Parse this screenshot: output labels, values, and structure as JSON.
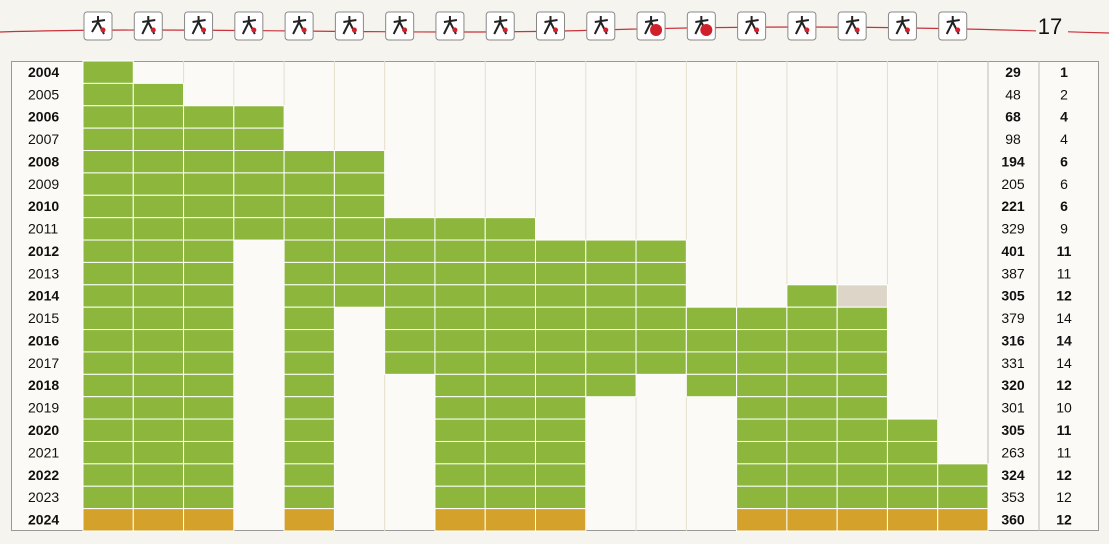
{
  "header": {
    "count": "17",
    "icon_count": 18
  },
  "colors": {
    "held": "#8cb63c",
    "current": "#d4a22a",
    "cancelled": "#ddd6c8",
    "count_text": "#1a9a4a",
    "current_text": "#c0121e"
  },
  "rows": [
    {
      "year": "2004",
      "total": "29",
      "count": "1",
      "held": [
        0
      ]
    },
    {
      "year": "2005",
      "total": "48",
      "count": "2",
      "held": [
        0,
        1
      ]
    },
    {
      "year": "2006",
      "total": "68",
      "count": "4",
      "held": [
        0,
        1,
        2,
        3
      ]
    },
    {
      "year": "2007",
      "total": "98",
      "count": "4",
      "held": [
        0,
        1,
        2,
        3
      ]
    },
    {
      "year": "2008",
      "total": "194",
      "count": "6",
      "held": [
        0,
        1,
        2,
        3,
        4,
        5
      ]
    },
    {
      "year": "2009",
      "total": "205",
      "count": "6",
      "held": [
        0,
        1,
        2,
        3,
        4,
        5
      ]
    },
    {
      "year": "2010",
      "total": "221",
      "count": "6",
      "held": [
        0,
        1,
        2,
        3,
        4,
        5
      ]
    },
    {
      "year": "2011",
      "total": "329",
      "count": "9",
      "held": [
        0,
        1,
        2,
        3,
        4,
        5,
        6,
        7,
        8
      ]
    },
    {
      "year": "2012",
      "total": "401",
      "count": "11",
      "held": [
        0,
        1,
        2,
        4,
        5,
        6,
        7,
        8,
        9,
        10,
        11
      ]
    },
    {
      "year": "2013",
      "total": "387",
      "count": "11",
      "held": [
        0,
        1,
        2,
        4,
        5,
        6,
        7,
        8,
        9,
        10,
        11
      ]
    },
    {
      "year": "2014",
      "total": "305",
      "count": "12",
      "held": [
        0,
        1,
        2,
        4,
        5,
        6,
        7,
        8,
        9,
        10,
        11,
        14
      ],
      "cancelled": [
        15
      ]
    },
    {
      "year": "2015",
      "total": "379",
      "count": "14",
      "held": [
        0,
        1,
        2,
        4,
        6,
        7,
        8,
        9,
        10,
        11,
        12,
        13,
        14,
        15
      ]
    },
    {
      "year": "2016",
      "total": "316",
      "count": "14",
      "held": [
        0,
        1,
        2,
        4,
        6,
        7,
        8,
        9,
        10,
        11,
        12,
        13,
        14,
        15
      ]
    },
    {
      "year": "2017",
      "total": "331",
      "count": "14",
      "held": [
        0,
        1,
        2,
        4,
        6,
        7,
        8,
        9,
        10,
        11,
        12,
        13,
        14,
        15
      ]
    },
    {
      "year": "2018",
      "total": "320",
      "count": "12",
      "held": [
        0,
        1,
        2,
        4,
        7,
        8,
        9,
        10,
        12,
        13,
        14,
        15
      ]
    },
    {
      "year": "2019",
      "total": "301",
      "count": "10",
      "held": [
        0,
        1,
        2,
        4,
        7,
        8,
        9,
        13,
        14,
        15
      ]
    },
    {
      "year": "2020",
      "total": "305",
      "count": "11",
      "held": [
        0,
        1,
        2,
        4,
        7,
        8,
        9,
        13,
        14,
        15,
        16
      ]
    },
    {
      "year": "2021",
      "total": "263",
      "count": "11",
      "held": [
        0,
        1,
        2,
        4,
        7,
        8,
        9,
        13,
        14,
        15,
        16
      ]
    },
    {
      "year": "2022",
      "total": "324",
      "count": "12",
      "held": [
        0,
        1,
        2,
        4,
        7,
        8,
        9,
        13,
        14,
        15,
        16,
        17
      ]
    },
    {
      "year": "2023",
      "total": "353",
      "count": "12",
      "held": [
        0,
        1,
        2,
        4,
        7,
        8,
        9,
        13,
        14,
        15,
        16,
        17
      ]
    },
    {
      "year": "2024",
      "total": "360",
      "count": "12",
      "held": [
        0,
        1,
        2,
        4,
        7,
        8,
        9,
        13,
        14,
        15,
        16,
        17
      ],
      "current": true
    }
  ]
}
